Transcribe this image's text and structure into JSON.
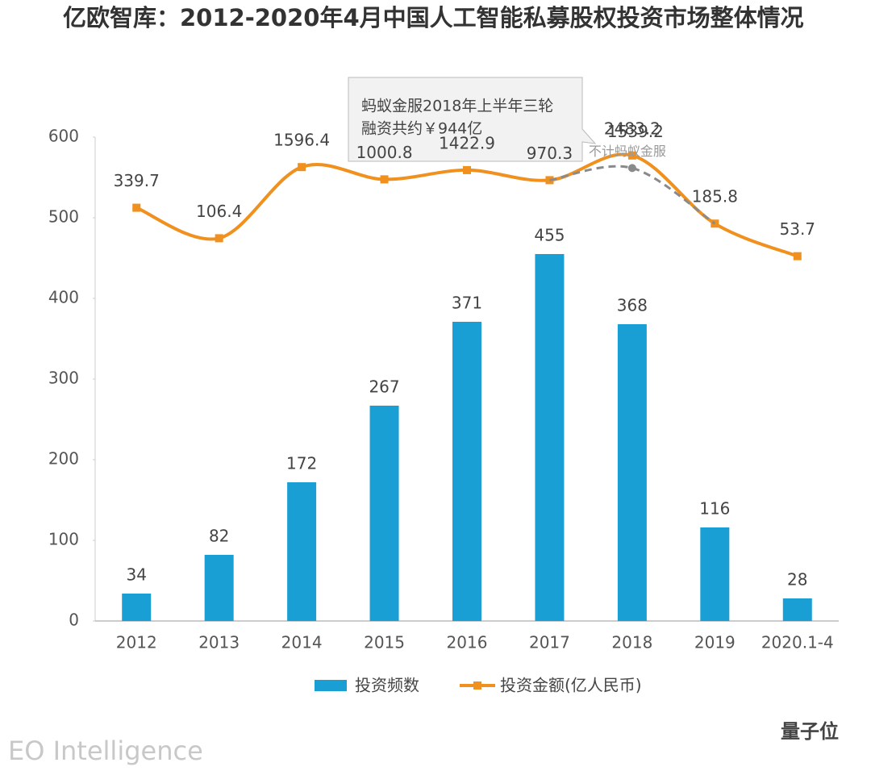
{
  "chart_data": {
    "type": "bar",
    "title": "亿欧智库：2012-2020年4月中国人工智能私募股权投资市场整体情况",
    "categories": [
      "2012",
      "2013",
      "2014",
      "2015",
      "2016",
      "2017",
      "2018",
      "2019",
      "2020.1-4"
    ],
    "ylim": [
      0,
      600
    ],
    "yticks": [
      0,
      100,
      200,
      300,
      400,
      500,
      600
    ],
    "y2lim": [
      5e-05,
      5000
    ],
    "y2log": true,
    "series": [
      {
        "name": "投资频数",
        "type": "bar",
        "color": "#1a9fd4",
        "values": [
          34,
          82,
          172,
          267,
          371,
          455,
          368,
          116,
          28
        ]
      },
      {
        "name": "投资金额(亿人民币)",
        "type": "line",
        "axis": "y2",
        "color": "#f0901e",
        "values": [
          339.7,
          106.4,
          1596.4,
          1000.8,
          1422.9,
          970.3,
          2483.2,
          185.8,
          53.7
        ]
      },
      {
        "name": "不计蚂蚁金服",
        "type": "line",
        "axis": "y2",
        "dash": true,
        "color": "#8a8a8a",
        "values": [
          null,
          null,
          null,
          null,
          null,
          970.3,
          1539.2,
          185.8,
          null
        ]
      }
    ],
    "annotation": [
      "蚂蚁金服2018年上半年三轮",
      "融资共约￥944亿"
    ],
    "source": "EO Intelligence",
    "watermark": "量子位"
  }
}
